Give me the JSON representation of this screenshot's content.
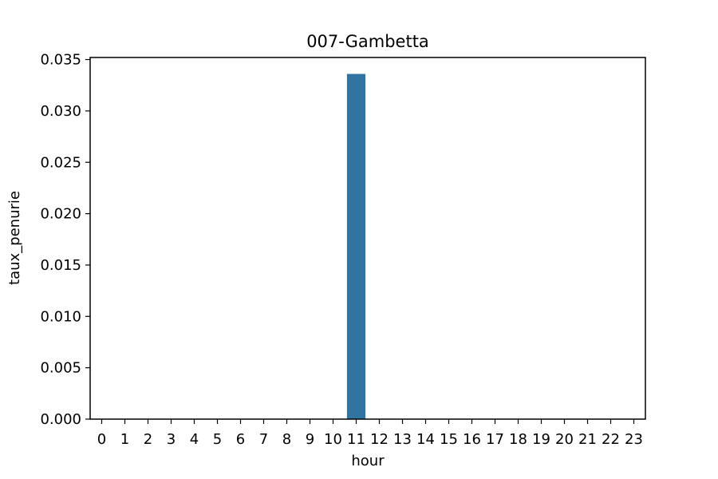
{
  "chart_data": {
    "type": "bar",
    "title": "007-Gambetta",
    "xlabel": "hour",
    "ylabel": "taux_penurie",
    "categories": [
      "0",
      "1",
      "2",
      "3",
      "4",
      "5",
      "6",
      "7",
      "8",
      "9",
      "10",
      "11",
      "12",
      "13",
      "14",
      "15",
      "16",
      "17",
      "18",
      "19",
      "20",
      "21",
      "22",
      "23"
    ],
    "values": [
      0,
      0,
      0,
      0,
      0,
      0,
      0,
      0,
      0,
      0,
      0,
      0.0336,
      0,
      0,
      0,
      0,
      0,
      0,
      0,
      0,
      0,
      0,
      0,
      0
    ],
    "yticks": [
      "0.000",
      "0.005",
      "0.010",
      "0.015",
      "0.020",
      "0.025",
      "0.030",
      "0.035"
    ],
    "ylim": [
      0,
      0.0352
    ],
    "grid": false,
    "bar_color": "#3274a1"
  }
}
